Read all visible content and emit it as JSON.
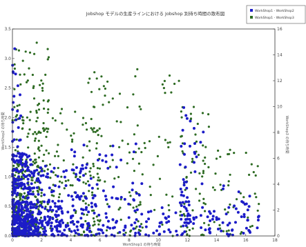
{
  "chart_data": {
    "type": "scatter",
    "title": "Jobshop モデルの生産ラインにおける Jobshop 別待ち時間の散布図",
    "xlabel": "WorkShop1 の待ち時間",
    "ylabel_left": "WorkShop2 の待ち時間",
    "ylabel_right": "WorkShop3 の待ち時間",
    "xlim": [
      0,
      18
    ],
    "ylim_left": [
      0,
      3.5
    ],
    "ylim_right": [
      0,
      16
    ],
    "x_ticks": [
      "0",
      "2",
      "4",
      "6",
      "8",
      "10",
      "12",
      "14",
      "16",
      "18"
    ],
    "y_left_ticks": [
      "0.0",
      "0.5",
      "1.0",
      "1.5",
      "2.0",
      "2.5",
      "3.0",
      "3.5"
    ],
    "y_right_ticks": [
      "0",
      "2",
      "4",
      "6",
      "8",
      "10",
      "12",
      "14",
      "16"
    ],
    "legend_position": "top-right",
    "grid": false,
    "series": [
      {
        "name": "WorkShop1 - WorkShop2",
        "color": "#1c1cc8",
        "axis": "left",
        "clusters": [
          {
            "x": [
              0,
              1.5
            ],
            "y": [
              0,
              1.4
            ],
            "n": 260
          },
          {
            "x": [
              0,
              3.5
            ],
            "y": [
              0,
              0.6
            ],
            "n": 200
          },
          {
            "x": [
              0,
              0.6
            ],
            "y": [
              0.8,
              3.2
            ],
            "n": 40
          },
          {
            "x": [
              1.5,
              5.5
            ],
            "y": [
              0,
              1.2
            ],
            "n": 110
          },
          {
            "x": [
              4,
              10
            ],
            "y": [
              0,
              0.7
            ],
            "n": 90
          },
          {
            "x": [
              4,
              9
            ],
            "y": [
              0.6,
              1.6
            ],
            "n": 35
          },
          {
            "x": [
              10,
              17
            ],
            "y": [
              0,
              0.5
            ],
            "n": 55
          },
          {
            "x": [
              11.5,
              13.2
            ],
            "y": [
              0.2,
              2.2
            ],
            "n": 55
          },
          {
            "x": [
              13.5,
              16.5
            ],
            "y": [
              0,
              1.0
            ],
            "n": 30
          }
        ]
      },
      {
        "name": "WorkShop1 - WorkShop3",
        "color": "#2e6b23",
        "axis": "right",
        "clusters": [
          {
            "x": [
              0,
              2
            ],
            "y": [
              0,
              6
            ],
            "n": 220
          },
          {
            "x": [
              0,
              2.5
            ],
            "y": [
              5,
              15
            ],
            "n": 90
          },
          {
            "x": [
              1.5,
              6
            ],
            "y": [
              0,
              10
            ],
            "n": 150
          },
          {
            "x": [
              5,
              9
            ],
            "y": [
              0,
              13
            ],
            "n": 90
          },
          {
            "x": [
              8,
              11
            ],
            "y": [
              0,
              8
            ],
            "n": 40
          },
          {
            "x": [
              11.5,
              13.5
            ],
            "y": [
              0,
              10
            ],
            "n": 60
          },
          {
            "x": [
              13,
              17
            ],
            "y": [
              0,
              7
            ],
            "n": 55
          },
          {
            "x": [
              10,
              11.5
            ],
            "y": [
              11,
              12.5
            ],
            "n": 8
          }
        ]
      }
    ]
  }
}
